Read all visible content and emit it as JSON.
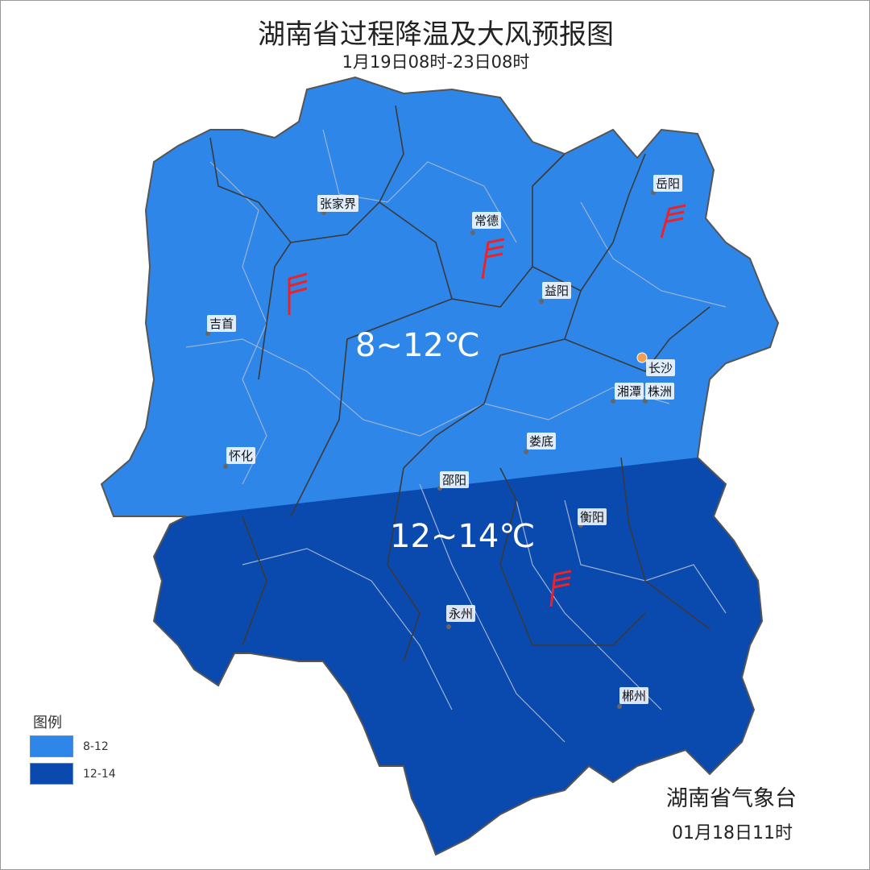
{
  "header": {
    "title": "湖南省过程降温及大风预报图",
    "subtitle": "1月19日08时-23日08时"
  },
  "colors": {
    "zone_8_12": "#2e86e8",
    "zone_12_14": "#0a49ad",
    "wind_flag": "#e8242a"
  },
  "zones": [
    {
      "label": "8~12℃"
    },
    {
      "label": "12~14℃"
    }
  ],
  "cities": [
    "张家界",
    "常德",
    "岳阳",
    "益阳",
    "吉首",
    "长沙",
    "湘潭",
    "株洲",
    "娄底",
    "怀化",
    "邵阳",
    "衡阳",
    "永州",
    "郴州"
  ],
  "wind_flags": [
    "wind-flag-icon",
    "wind-flag-icon",
    "wind-flag-icon",
    "wind-flag-icon"
  ],
  "legend": {
    "title": "图例",
    "items": [
      {
        "label": "8-12",
        "color": "#2e86e8"
      },
      {
        "label": "12-14",
        "color": "#0a49ad"
      }
    ]
  },
  "footer": {
    "organization": "湖南省气象台",
    "issued": "01月18日11时"
  }
}
